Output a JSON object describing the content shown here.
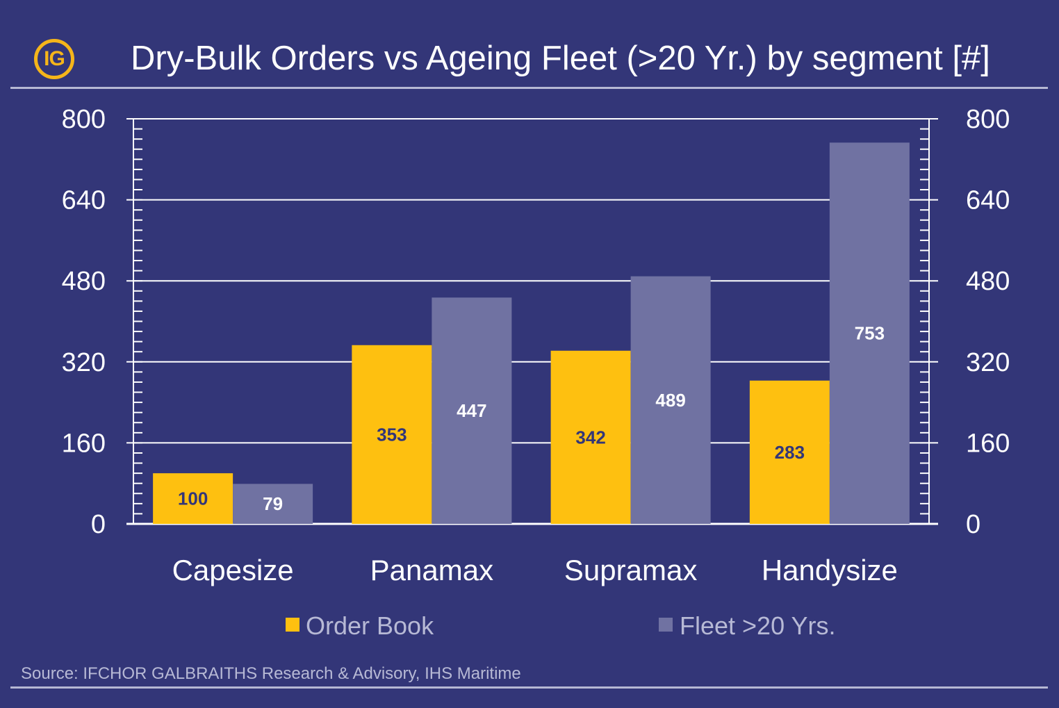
{
  "header": {
    "logo_text": "IG",
    "title": "Dry-Bulk Orders vs Ageing Fleet (>20 Yr.) by segment [#]"
  },
  "footer": {
    "source": "Source: IFCHOR GALBRAITHS Research & Advisory, IHS Maritime"
  },
  "colors": {
    "background": "#333678",
    "order_book": "#fec010",
    "fleet": "#7072a2",
    "gridline": "#ffffff",
    "label_on_yellow": "#333678",
    "label_on_fleet": "#ffffff"
  },
  "chart_data": {
    "type": "bar",
    "title": "Dry-Bulk Orders vs Ageing Fleet (>20 Yr.) by segment [#]",
    "categories": [
      "Capesize",
      "Panamax",
      "Supramax",
      "Handysize"
    ],
    "series": [
      {
        "name": "Order Book",
        "values": [
          100,
          353,
          342,
          283
        ]
      },
      {
        "name": "Fleet >20 Yrs.",
        "values": [
          79,
          447,
          489,
          753
        ]
      }
    ],
    "ylim": [
      0,
      800
    ],
    "y_ticks": [
      "0",
      "160",
      "320",
      "480",
      "640",
      "800"
    ],
    "secondary_y_ticks": [
      "0",
      "160",
      "320",
      "480",
      "640",
      "800"
    ],
    "grid": true,
    "data_labels": true,
    "legend_position": "bottom"
  }
}
